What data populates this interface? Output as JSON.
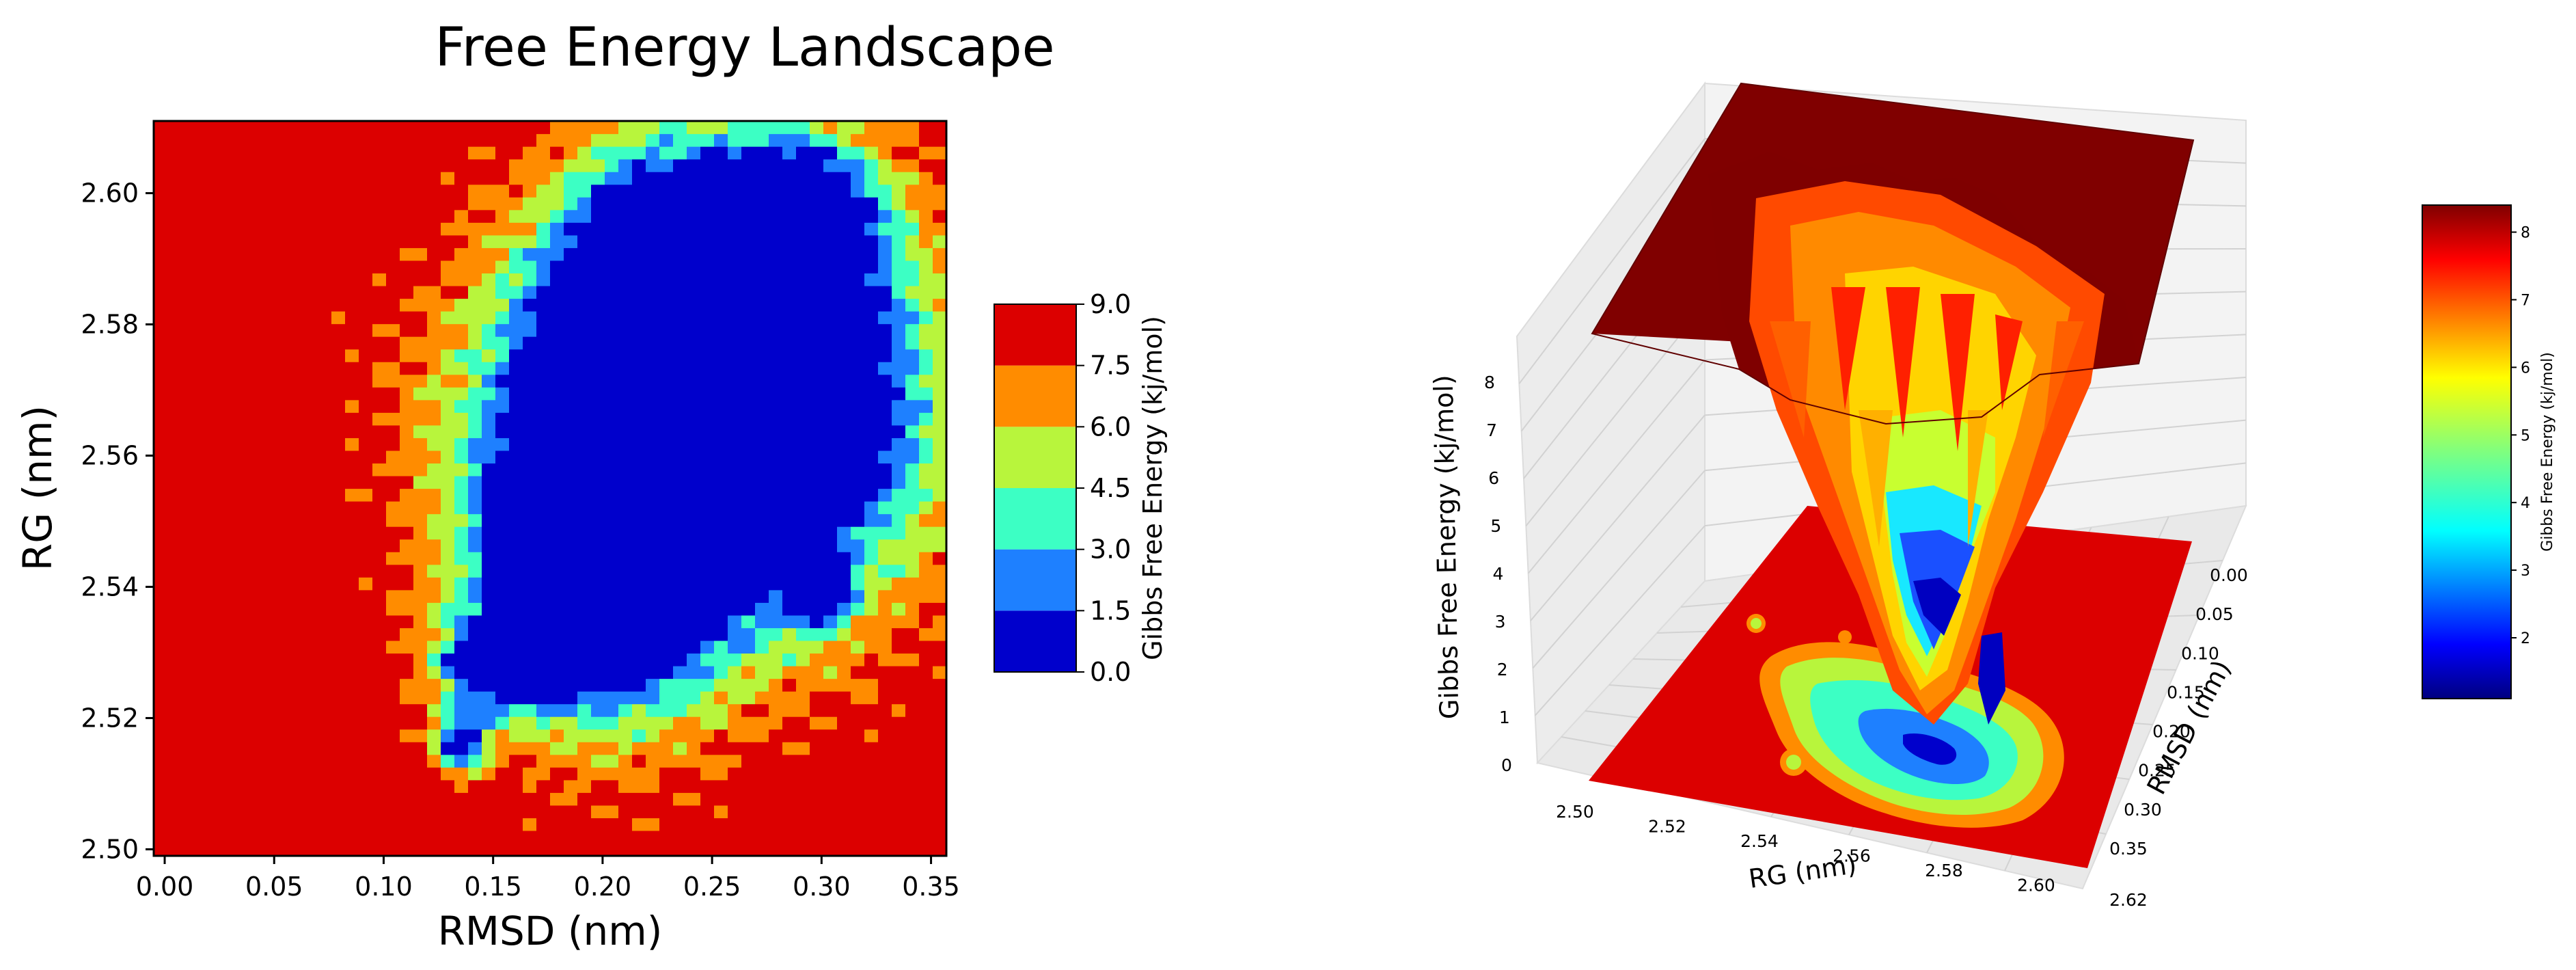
{
  "chart_data": [
    {
      "type": "heatmap",
      "title": "Free Energy Landscape",
      "xlabel": "RMSD (nm)",
      "ylabel": "RG (nm)",
      "xlim": [
        -0.005,
        0.357
      ],
      "ylim": [
        2.499,
        2.611
      ],
      "xticks": [
        "0.00",
        "0.05",
        "0.10",
        "0.15",
        "0.20",
        "0.25",
        "0.30",
        "0.35"
      ],
      "yticks": [
        "2.50",
        "2.52",
        "2.54",
        "2.56",
        "2.58",
        "2.60"
      ],
      "colorbar": {
        "label": "Gibbs Free Energy (kj/mol)",
        "ticks": [
          "0.0",
          "1.5",
          "3.0",
          "4.5",
          "6.0",
          "7.5",
          "9.0"
        ],
        "levels": [
          0,
          1.5,
          3,
          4.5,
          6,
          7.5,
          9
        ],
        "colors": [
          "#0000cc",
          "#1e80ff",
          "#3cffc4",
          "#b8f53c",
          "#ff8c00",
          "#dc0000"
        ]
      },
      "background_level": 9.0,
      "basins": [
        {
          "x": 0.245,
          "y": 2.565,
          "sx": 0.068,
          "sy": 0.022
        },
        {
          "x": 0.275,
          "y": 2.572,
          "sx": 0.04,
          "sy": 0.018
        },
        {
          "x": 0.205,
          "y": 2.552,
          "sx": 0.04,
          "sy": 0.02
        },
        {
          "x": 0.225,
          "y": 2.585,
          "sx": 0.03,
          "sy": 0.015
        },
        {
          "x": 0.19,
          "y": 2.54,
          "sx": 0.028,
          "sy": 0.011
        },
        {
          "x": 0.15,
          "y": 2.528,
          "sx": 0.018,
          "sy": 0.005
        },
        {
          "x": 0.135,
          "y": 2.516,
          "sx": 0.008,
          "sy": 0.003
        },
        {
          "x": 0.29,
          "y": 2.597,
          "sx": 0.025,
          "sy": 0.008
        },
        {
          "x": 0.3,
          "y": 2.539,
          "sx": 0.008,
          "sy": 0.003
        }
      ]
    },
    {
      "type": "surface",
      "xlabel": "RG (nm)",
      "ylabel": "RMSD (nm)",
      "zlabel": "Gibbs Free Energy (kj/mol)",
      "xticks": [
        "2.50",
        "2.52",
        "2.54",
        "2.56",
        "2.58",
        "2.60",
        "2.62"
      ],
      "yticks": [
        "0.00",
        "0.05",
        "0.10",
        "0.15",
        "0.20",
        "0.25",
        "0.30",
        "0.35"
      ],
      "zticks": [
        "0",
        "1",
        "2",
        "3",
        "4",
        "5",
        "6",
        "7",
        "8"
      ],
      "colorbar": {
        "label": "Gibbs Free Energy (kj/mol)",
        "ticks": [
          "2",
          "3",
          "4",
          "5",
          "6",
          "7",
          "8"
        ],
        "range": [
          1.1,
          8.4
        ]
      }
    }
  ]
}
